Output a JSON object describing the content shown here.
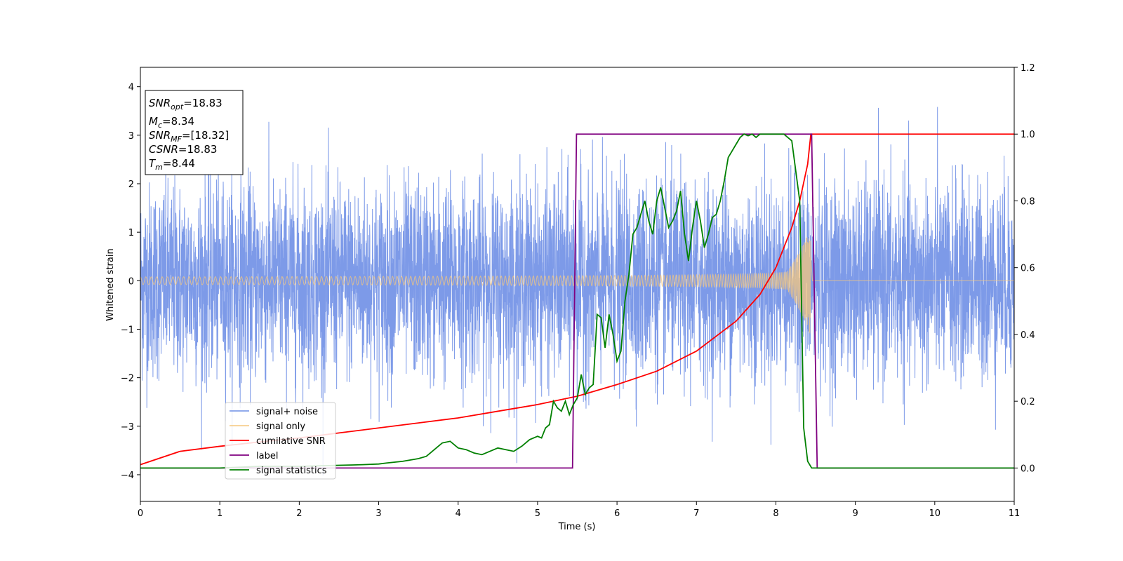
{
  "chart_data": {
    "type": "line",
    "xlabel": "Time (s)",
    "ylabel": "Whitened strain",
    "xlim": [
      0,
      11
    ],
    "ylim": [
      -4.55,
      4.4
    ],
    "y2lim": [
      -0.1,
      1.2
    ],
    "x_ticks": [
      "0",
      "1",
      "2",
      "3",
      "4",
      "5",
      "6",
      "7",
      "8",
      "9",
      "10",
      "11"
    ],
    "y_ticks": [
      "4",
      "3",
      "2",
      "1",
      "0",
      "−1",
      "−2",
      "−3",
      "−4"
    ],
    "y2_ticks": [
      "1.2",
      "1.0",
      "0.8",
      "0.6",
      "0.4",
      "0.2",
      "0.0"
    ],
    "grid": false,
    "legend_position": "lower-left",
    "info_box": {
      "position": "top-left",
      "lines": [
        {
          "main": "SNR",
          "sub": "opt",
          "rest": "=18.83"
        },
        {
          "main": "M",
          "sub": "c",
          "rest": "=8.34"
        },
        {
          "main": "SNR",
          "sub": "MF",
          "rest": "=[18.32]"
        },
        {
          "main": "CSNR",
          "sub": "",
          "rest": "=18.83"
        },
        {
          "main": "T",
          "sub": "m",
          "rest": "=8.44"
        }
      ]
    },
    "series": [
      {
        "name": "signal+ noise",
        "color": "#6f8fe6",
        "axis": "left",
        "description_kind": "noise",
        "noise_std": 1.0,
        "t_start": 0,
        "t_end": 11
      },
      {
        "name": "signal only",
        "color": "#f5c77e",
        "axis": "left",
        "description_kind": "chirp",
        "t_start": 0,
        "t_merge": 8.44,
        "amplitude_start": 0.08,
        "amplitude_end": 1.2
      },
      {
        "name": "cumilative SNR",
        "color": "#ff0000",
        "axis": "right",
        "x": [
          0,
          0.5,
          1,
          1.5,
          2,
          2.5,
          3,
          3.5,
          4,
          4.5,
          5,
          5.5,
          6,
          6.5,
          7,
          7.5,
          7.8,
          8.0,
          8.2,
          8.3,
          8.4,
          8.44,
          8.45,
          11
        ],
        "values": [
          0.01,
          0.05,
          0.065,
          0.078,
          0.09,
          0.105,
          0.12,
          0.135,
          0.15,
          0.17,
          0.19,
          0.215,
          0.25,
          0.29,
          0.35,
          0.44,
          0.52,
          0.6,
          0.72,
          0.8,
          0.91,
          1.0,
          1.0,
          1.0
        ]
      },
      {
        "name": "label",
        "color": "#800080",
        "axis": "right",
        "x": [
          0,
          5.44,
          5.49,
          8.45,
          8.52,
          11
        ],
        "values": [
          0,
          0,
          1,
          1,
          0,
          0
        ]
      },
      {
        "name": "signal statistics",
        "color": "#008000",
        "axis": "right",
        "x": [
          0,
          0.5,
          1,
          1.5,
          2,
          2.5,
          2.8,
          3.0,
          3.1,
          3.3,
          3.5,
          3.6,
          3.7,
          3.8,
          3.9,
          4.0,
          4.1,
          4.2,
          4.3,
          4.4,
          4.5,
          4.6,
          4.7,
          4.8,
          4.9,
          5.0,
          5.05,
          5.1,
          5.15,
          5.2,
          5.25,
          5.3,
          5.35,
          5.4,
          5.45,
          5.5,
          5.55,
          5.6,
          5.65,
          5.7,
          5.75,
          5.8,
          5.85,
          5.9,
          5.95,
          6.0,
          6.05,
          6.1,
          6.15,
          6.2,
          6.25,
          6.3,
          6.35,
          6.4,
          6.45,
          6.5,
          6.55,
          6.6,
          6.65,
          6.7,
          6.75,
          6.8,
          6.85,
          6.9,
          6.95,
          7.0,
          7.05,
          7.1,
          7.15,
          7.2,
          7.25,
          7.3,
          7.35,
          7.4,
          7.45,
          7.5,
          7.55,
          7.6,
          7.65,
          7.7,
          7.75,
          7.8,
          7.9,
          8.0,
          8.1,
          8.2,
          8.3,
          8.35,
          8.4,
          8.45,
          8.5,
          8.55,
          8.6,
          11
        ],
        "values": [
          0.0,
          0.0,
          0.0,
          0.005,
          0.005,
          0.008,
          0.01,
          0.012,
          0.015,
          0.02,
          0.028,
          0.035,
          0.055,
          0.075,
          0.08,
          0.06,
          0.055,
          0.045,
          0.04,
          0.05,
          0.06,
          0.055,
          0.05,
          0.065,
          0.085,
          0.095,
          0.09,
          0.12,
          0.13,
          0.2,
          0.18,
          0.17,
          0.2,
          0.16,
          0.19,
          0.21,
          0.28,
          0.22,
          0.24,
          0.25,
          0.46,
          0.45,
          0.36,
          0.46,
          0.4,
          0.32,
          0.35,
          0.5,
          0.58,
          0.7,
          0.72,
          0.76,
          0.8,
          0.74,
          0.7,
          0.8,
          0.84,
          0.78,
          0.72,
          0.74,
          0.77,
          0.83,
          0.7,
          0.62,
          0.72,
          0.8,
          0.74,
          0.66,
          0.7,
          0.75,
          0.76,
          0.8,
          0.86,
          0.93,
          0.95,
          0.97,
          0.99,
          1.0,
          0.995,
          1.0,
          0.99,
          1.0,
          1.0,
          1.0,
          1.0,
          0.98,
          0.8,
          0.12,
          0.02,
          0.0,
          0.0,
          0.0,
          0.0,
          0.0
        ]
      }
    ]
  }
}
